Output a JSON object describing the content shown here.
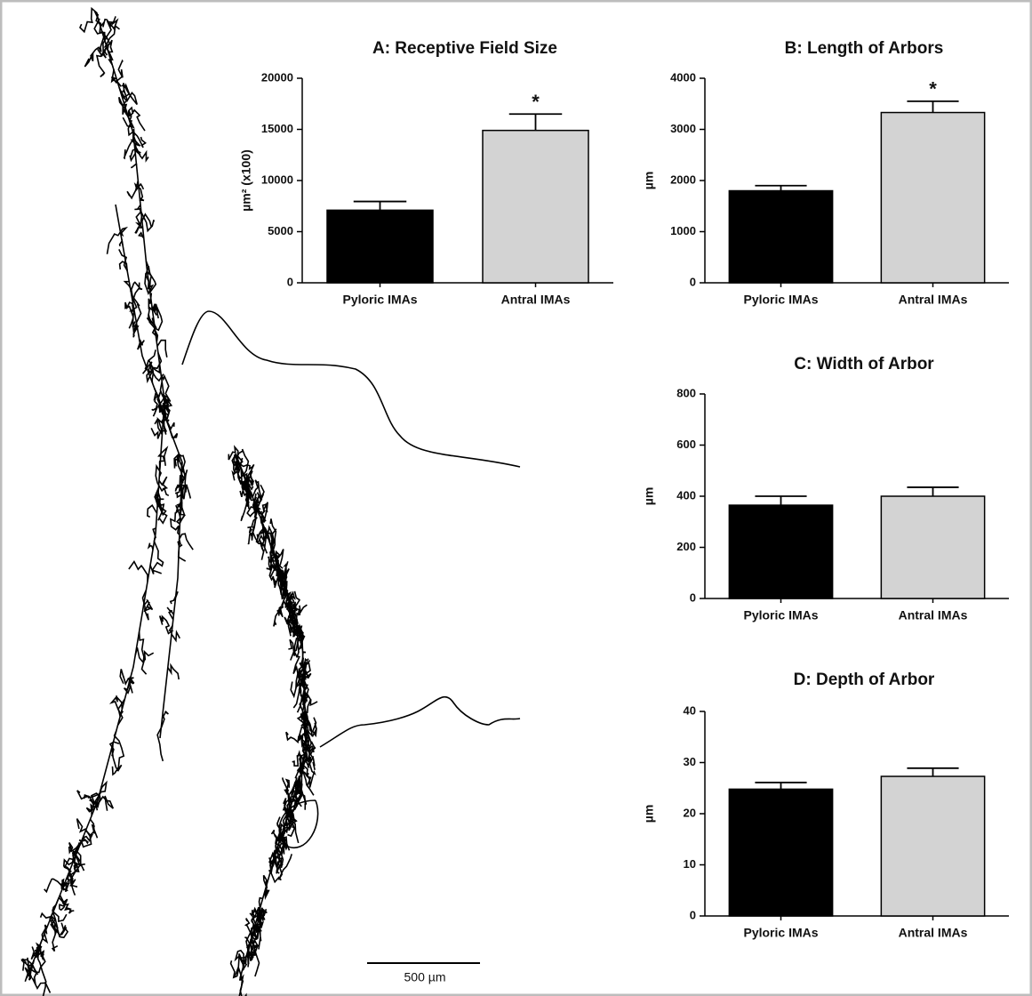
{
  "chart_data": [
    {
      "type": "bar",
      "title": "A: Receptive Field Size",
      "ylabel": "µm² (x100)",
      "categories": [
        "Pyloric IMAs",
        "Antral IMAs"
      ],
      "values": [
        7100,
        14900
      ],
      "errors": [
        850,
        1600
      ],
      "colors": [
        "#000000",
        "#d3d3d3"
      ],
      "ylim": [
        0,
        20000
      ],
      "yticks": [
        0,
        5000,
        10000,
        15000,
        20000
      ],
      "annotations": [
        {
          "text": "*",
          "category": "Antral IMAs"
        }
      ]
    },
    {
      "type": "bar",
      "title": "B: Length of Arbors",
      "ylabel": "µm",
      "categories": [
        "Pyloric IMAs",
        "Antral IMAs"
      ],
      "values": [
        1800,
        3330
      ],
      "errors": [
        100,
        220
      ],
      "colors": [
        "#000000",
        "#d3d3d3"
      ],
      "ylim": [
        0,
        4000
      ],
      "yticks": [
        0,
        1000,
        2000,
        3000,
        4000
      ],
      "annotations": [
        {
          "text": "*",
          "category": "Antral IMAs"
        }
      ]
    },
    {
      "type": "bar",
      "title": "C: Width of Arbor",
      "ylabel": "µm",
      "categories": [
        "Pyloric IMAs",
        "Antral IMAs"
      ],
      "values": [
        365,
        400
      ],
      "errors": [
        35,
        35
      ],
      "colors": [
        "#000000",
        "#d3d3d3"
      ],
      "ylim": [
        0,
        800
      ],
      "yticks": [
        0,
        200,
        400,
        600,
        800
      ]
    },
    {
      "type": "bar",
      "title": "D: Depth of  Arbor",
      "ylabel": "µm",
      "categories": [
        "Pyloric IMAs",
        "Antral IMAs"
      ],
      "values": [
        24.8,
        27.3
      ],
      "errors": [
        1.3,
        1.6
      ],
      "colors": [
        "#000000",
        "#d3d3d3"
      ],
      "ylim": [
        0,
        40
      ],
      "yticks": [
        0,
        10,
        20,
        30,
        40
      ]
    }
  ],
  "scale_bar": "500 µm"
}
